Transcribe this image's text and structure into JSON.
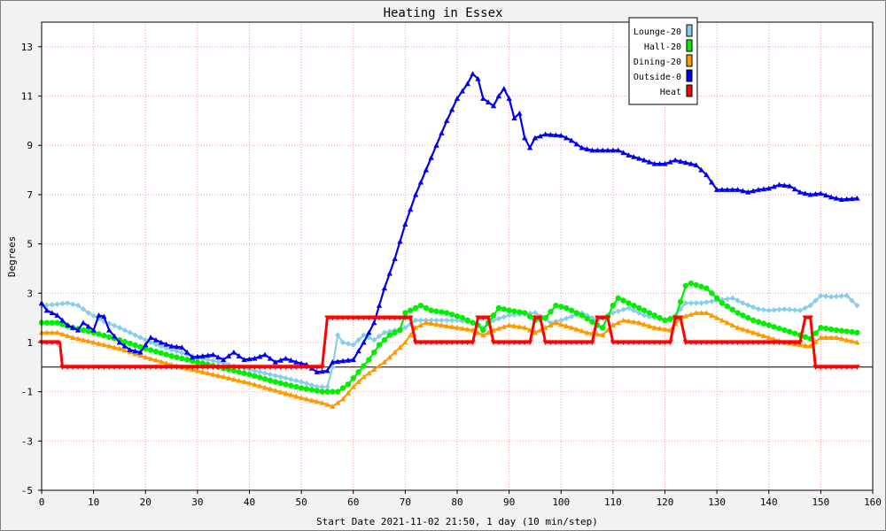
{
  "chart_data": {
    "type": "line",
    "title": "Heating in Essex",
    "xlabel": "Start Date 2021-11-02 21:50, 1 day (10 min/step)",
    "ylabel": "Degrees",
    "xlim": [
      0,
      160
    ],
    "ylim": [
      -5,
      14
    ],
    "x_ticks": [
      0,
      10,
      20,
      30,
      40,
      50,
      60,
      70,
      80,
      90,
      100,
      110,
      120,
      130,
      140,
      150,
      160
    ],
    "y_ticks": [
      -5,
      -3,
      -1,
      1,
      3,
      5,
      7,
      9,
      11,
      13
    ],
    "grid": true,
    "legend_position": "top-right",
    "series": [
      {
        "name": "Lounge-20",
        "color": "#87ceeb",
        "marker": "diamond",
        "points": [
          [
            0,
            2.5
          ],
          [
            3,
            2.55
          ],
          [
            5,
            2.6
          ],
          [
            7,
            2.5
          ],
          [
            9,
            2.2
          ],
          [
            12,
            1.85
          ],
          [
            15,
            1.6
          ],
          [
            18,
            1.3
          ],
          [
            21,
            1.0
          ],
          [
            25,
            0.7
          ],
          [
            30,
            0.4
          ],
          [
            35,
            0.15
          ],
          [
            40,
            -0.1
          ],
          [
            45,
            -0.35
          ],
          [
            50,
            -0.6
          ],
          [
            53,
            -0.8
          ],
          [
            55,
            -0.8
          ],
          [
            56,
            0.0
          ],
          [
            57,
            1.3
          ],
          [
            58,
            1.0
          ],
          [
            60,
            0.9
          ],
          [
            62,
            1.3
          ],
          [
            64,
            1.1
          ],
          [
            66,
            1.4
          ],
          [
            68,
            1.5
          ],
          [
            70,
            1.6
          ],
          [
            72,
            1.9
          ],
          [
            75,
            1.9
          ],
          [
            80,
            1.9
          ],
          [
            83,
            1.8
          ],
          [
            85,
            1.6
          ],
          [
            87,
            1.9
          ],
          [
            90,
            2.1
          ],
          [
            95,
            2.2
          ],
          [
            98,
            1.8
          ],
          [
            100,
            1.9
          ],
          [
            104,
            2.2
          ],
          [
            107,
            1.9
          ],
          [
            110,
            2.2
          ],
          [
            113,
            2.4
          ],
          [
            116,
            2.1
          ],
          [
            120,
            1.9
          ],
          [
            122,
            2.1
          ],
          [
            124,
            2.6
          ],
          [
            127,
            2.6
          ],
          [
            130,
            2.7
          ],
          [
            133,
            2.8
          ],
          [
            135,
            2.6
          ],
          [
            138,
            2.35
          ],
          [
            140,
            2.3
          ],
          [
            143,
            2.35
          ],
          [
            146,
            2.3
          ],
          [
            148,
            2.5
          ],
          [
            150,
            2.9
          ],
          [
            152,
            2.85
          ],
          [
            155,
            2.9
          ],
          [
            157,
            2.5
          ]
        ]
      },
      {
        "name": "Hall-20",
        "color": "#00ee00",
        "marker": "circle",
        "points": [
          [
            0,
            1.8
          ],
          [
            3,
            1.8
          ],
          [
            6,
            1.6
          ],
          [
            10,
            1.4
          ],
          [
            15,
            1.1
          ],
          [
            20,
            0.75
          ],
          [
            25,
            0.45
          ],
          [
            30,
            0.2
          ],
          [
            35,
            -0.05
          ],
          [
            40,
            -0.3
          ],
          [
            45,
            -0.6
          ],
          [
            50,
            -0.85
          ],
          [
            54,
            -1.0
          ],
          [
            57,
            -1.0
          ],
          [
            59,
            -0.7
          ],
          [
            61,
            -0.2
          ],
          [
            63,
            0.3
          ],
          [
            65,
            0.9
          ],
          [
            67,
            1.3
          ],
          [
            69,
            1.5
          ],
          [
            70,
            2.2
          ],
          [
            72,
            2.4
          ],
          [
            73,
            2.5
          ],
          [
            75,
            2.3
          ],
          [
            78,
            2.2
          ],
          [
            81,
            2.0
          ],
          [
            84,
            1.7
          ],
          [
            85,
            1.5
          ],
          [
            86,
            1.8
          ],
          [
            88,
            2.4
          ],
          [
            90,
            2.3
          ],
          [
            93,
            2.2
          ],
          [
            95,
            1.9
          ],
          [
            97,
            2.0
          ],
          [
            99,
            2.5
          ],
          [
            101,
            2.4
          ],
          [
            104,
            2.1
          ],
          [
            107,
            1.7
          ],
          [
            108,
            1.6
          ],
          [
            110,
            2.5
          ],
          [
            111,
            2.8
          ],
          [
            114,
            2.5
          ],
          [
            117,
            2.2
          ],
          [
            120,
            1.9
          ],
          [
            122,
            2.0
          ],
          [
            124,
            3.3
          ],
          [
            125,
            3.4
          ],
          [
            128,
            3.2
          ],
          [
            131,
            2.6
          ],
          [
            134,
            2.2
          ],
          [
            137,
            1.9
          ],
          [
            140,
            1.7
          ],
          [
            143,
            1.5
          ],
          [
            146,
            1.3
          ],
          [
            148,
            1.15
          ],
          [
            150,
            1.6
          ],
          [
            153,
            1.5
          ],
          [
            157,
            1.4
          ]
        ]
      },
      {
        "name": "Dining-20",
        "color": "#ff9900",
        "marker": "triangle",
        "points": [
          [
            0,
            1.4
          ],
          [
            3,
            1.4
          ],
          [
            6,
            1.2
          ],
          [
            10,
            1.0
          ],
          [
            15,
            0.75
          ],
          [
            20,
            0.4
          ],
          [
            25,
            0.1
          ],
          [
            30,
            -0.15
          ],
          [
            35,
            -0.4
          ],
          [
            40,
            -0.65
          ],
          [
            45,
            -0.95
          ],
          [
            50,
            -1.25
          ],
          [
            54,
            -1.45
          ],
          [
            56,
            -1.6
          ],
          [
            58,
            -1.3
          ],
          [
            60,
            -0.8
          ],
          [
            62,
            -0.4
          ],
          [
            64,
            -0.1
          ],
          [
            66,
            0.2
          ],
          [
            68,
            0.6
          ],
          [
            70,
            1.0
          ],
          [
            72,
            1.6
          ],
          [
            74,
            1.8
          ],
          [
            77,
            1.7
          ],
          [
            80,
            1.6
          ],
          [
            83,
            1.5
          ],
          [
            85,
            1.3
          ],
          [
            87,
            1.5
          ],
          [
            90,
            1.7
          ],
          [
            93,
            1.6
          ],
          [
            95,
            1.4
          ],
          [
            97,
            1.6
          ],
          [
            99,
            1.8
          ],
          [
            102,
            1.6
          ],
          [
            105,
            1.4
          ],
          [
            108,
            1.3
          ],
          [
            110,
            1.7
          ],
          [
            112,
            1.9
          ],
          [
            115,
            1.8
          ],
          [
            118,
            1.6
          ],
          [
            121,
            1.5
          ],
          [
            123,
            2.0
          ],
          [
            126,
            2.2
          ],
          [
            128,
            2.2
          ],
          [
            131,
            1.9
          ],
          [
            134,
            1.6
          ],
          [
            137,
            1.4
          ],
          [
            140,
            1.2
          ],
          [
            143,
            1.0
          ],
          [
            146,
            0.9
          ],
          [
            148,
            0.85
          ],
          [
            150,
            1.2
          ],
          [
            153,
            1.2
          ],
          [
            157,
            1.0
          ]
        ]
      },
      {
        "name": "Outside-0",
        "color": "#0000ee",
        "marker": "triangle",
        "points": [
          [
            0,
            2.6
          ],
          [
            1,
            2.3
          ],
          [
            3,
            2.1
          ],
          [
            5,
            1.7
          ],
          [
            7,
            1.5
          ],
          [
            8,
            1.8
          ],
          [
            10,
            1.5
          ],
          [
            11,
            2.1
          ],
          [
            12,
            2.05
          ],
          [
            13,
            1.5
          ],
          [
            15,
            1.0
          ],
          [
            17,
            0.7
          ],
          [
            19,
            0.6
          ],
          [
            21,
            1.2
          ],
          [
            23,
            1.0
          ],
          [
            25,
            0.85
          ],
          [
            27,
            0.8
          ],
          [
            29,
            0.4
          ],
          [
            31,
            0.45
          ],
          [
            33,
            0.5
          ],
          [
            35,
            0.3
          ],
          [
            37,
            0.6
          ],
          [
            39,
            0.3
          ],
          [
            41,
            0.35
          ],
          [
            43,
            0.5
          ],
          [
            45,
            0.2
          ],
          [
            47,
            0.35
          ],
          [
            49,
            0.2
          ],
          [
            51,
            0.1
          ],
          [
            53,
            -0.2
          ],
          [
            55,
            -0.15
          ],
          [
            56,
            0.2
          ],
          [
            58,
            0.25
          ],
          [
            60,
            0.3
          ],
          [
            62,
            1.0
          ],
          [
            64,
            1.8
          ],
          [
            66,
            3.2
          ],
          [
            68,
            4.4
          ],
          [
            70,
            5.8
          ],
          [
            72,
            7.0
          ],
          [
            74,
            8.0
          ],
          [
            76,
            9.0
          ],
          [
            78,
            10.0
          ],
          [
            80,
            10.9
          ],
          [
            82,
            11.5
          ],
          [
            83,
            11.9
          ],
          [
            84,
            11.7
          ],
          [
            85,
            10.9
          ],
          [
            87,
            10.6
          ],
          [
            88,
            11.0
          ],
          [
            89,
            11.3
          ],
          [
            90,
            10.9
          ],
          [
            91,
            10.1
          ],
          [
            92,
            10.3
          ],
          [
            93,
            9.3
          ],
          [
            94,
            8.9
          ],
          [
            95,
            9.3
          ],
          [
            97,
            9.45
          ],
          [
            100,
            9.4
          ],
          [
            102,
            9.2
          ],
          [
            104,
            8.9
          ],
          [
            106,
            8.8
          ],
          [
            108,
            8.8
          ],
          [
            111,
            8.8
          ],
          [
            113,
            8.6
          ],
          [
            116,
            8.4
          ],
          [
            118,
            8.25
          ],
          [
            120,
            8.25
          ],
          [
            122,
            8.4
          ],
          [
            124,
            8.3
          ],
          [
            126,
            8.2
          ],
          [
            128,
            7.8
          ],
          [
            130,
            7.2
          ],
          [
            132,
            7.2
          ],
          [
            134,
            7.2
          ],
          [
            136,
            7.1
          ],
          [
            138,
            7.2
          ],
          [
            140,
            7.25
          ],
          [
            142,
            7.4
          ],
          [
            144,
            7.35
          ],
          [
            146,
            7.1
          ],
          [
            148,
            7.0
          ],
          [
            150,
            7.05
          ],
          [
            152,
            6.9
          ],
          [
            154,
            6.8
          ],
          [
            157,
            6.85
          ]
        ]
      },
      {
        "name": "Heat",
        "color": "#ff0000",
        "marker": "triangle-down",
        "points": [
          [
            0,
            1
          ],
          [
            3.5,
            1
          ],
          [
            4,
            0
          ],
          [
            54,
            0
          ],
          [
            55,
            2
          ],
          [
            71,
            2
          ],
          [
            72,
            1
          ],
          [
            83,
            1
          ],
          [
            84,
            2
          ],
          [
            86,
            2
          ],
          [
            87,
            1
          ],
          [
            94,
            1
          ],
          [
            95,
            2
          ],
          [
            96,
            2
          ],
          [
            97,
            1
          ],
          [
            106,
            1
          ],
          [
            107,
            2
          ],
          [
            109,
            2
          ],
          [
            110,
            1
          ],
          [
            121,
            1
          ],
          [
            122,
            2
          ],
          [
            123,
            2
          ],
          [
            124,
            1
          ],
          [
            146,
            1
          ],
          [
            147,
            2
          ],
          [
            148,
            2
          ],
          [
            149,
            0
          ],
          [
            157,
            0
          ]
        ]
      }
    ]
  }
}
